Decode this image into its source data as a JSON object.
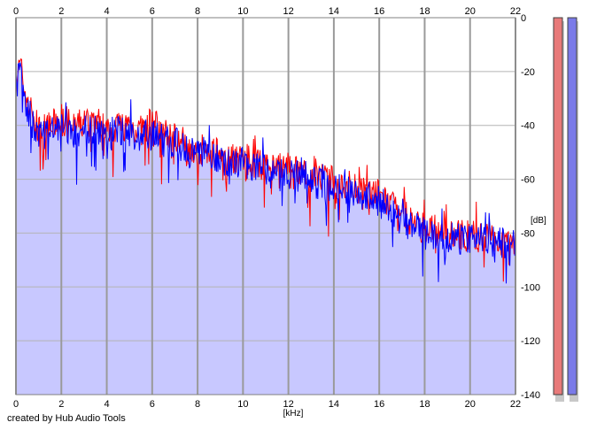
{
  "credit": "created by Hub Audio Tools",
  "chart_data": {
    "type": "line",
    "title": "",
    "xlabel": "[kHz]",
    "ylabel": "[dB]",
    "xlim": [
      0,
      22
    ],
    "ylim": [
      -140,
      0
    ],
    "x_ticks": [
      "0",
      "2",
      "4",
      "6",
      "8",
      "10",
      "12",
      "14",
      "16",
      "18",
      "20",
      "22"
    ],
    "y_ticks": [
      "0",
      "-20",
      "-40",
      "-60",
      "-80",
      "-100",
      "-120",
      "-140"
    ],
    "grid": true,
    "fill_color": "#c8c8ff",
    "series": [
      {
        "color": "#ff0000",
        "x": [
          0,
          0.2,
          0.4,
          0.6,
          0.8,
          1,
          1.5,
          2,
          2.5,
          3,
          3.5,
          4,
          4.5,
          5,
          5.5,
          6,
          6.5,
          7,
          7.5,
          8,
          8.5,
          9,
          9.5,
          10,
          10.5,
          11,
          11.5,
          12,
          12.5,
          13,
          13.5,
          14,
          14.5,
          15,
          15.5,
          16,
          16.5,
          17,
          17.5,
          18,
          18.5,
          19,
          19.5,
          20,
          20.5,
          21,
          21.5,
          22
        ],
        "values": [
          -22,
          -18,
          -28,
          -33,
          -38,
          -42,
          -41,
          -37,
          -41,
          -39,
          -38,
          -41,
          -40,
          -40,
          -42,
          -39,
          -43,
          -44,
          -47,
          -49,
          -49,
          -51,
          -52,
          -52,
          -54,
          -55,
          -56,
          -56,
          -57,
          -59,
          -60,
          -61,
          -62,
          -63,
          -64,
          -66,
          -70,
          -73,
          -76,
          -78,
          -79,
          -80,
          -81,
          -81,
          -81,
          -82,
          -83,
          -82
        ]
      },
      {
        "color": "#0000ff",
        "x": [
          0,
          0.2,
          0.4,
          0.6,
          0.8,
          1,
          1.5,
          2,
          2.5,
          3,
          3.5,
          4,
          4.5,
          5,
          5.5,
          6,
          6.5,
          7,
          7.5,
          8,
          8.5,
          9,
          9.5,
          10,
          10.5,
          11,
          11.5,
          12,
          12.5,
          13,
          13.5,
          14,
          14.5,
          15,
          15.5,
          16,
          16.5,
          17,
          17.5,
          18,
          18.5,
          19,
          19.5,
          20,
          20.5,
          21,
          21.5,
          22
        ],
        "values": [
          -20,
          -16,
          -30,
          -36,
          -42,
          -44,
          -43,
          -40,
          -44,
          -42,
          -41,
          -43,
          -42,
          -43,
          -45,
          -42,
          -46,
          -46,
          -49,
          -50,
          -50,
          -53,
          -53,
          -54,
          -56,
          -57,
          -58,
          -58,
          -59,
          -61,
          -62,
          -63,
          -64,
          -65,
          -66,
          -68,
          -72,
          -75,
          -78,
          -80,
          -80,
          -81,
          -82,
          -82,
          -82,
          -83,
          -84,
          -83
        ]
      }
    ],
    "level_meters": [
      {
        "color": "#e87a7a",
        "value_db": -140
      },
      {
        "color": "#7a7ae8",
        "value_db": -140
      }
    ]
  }
}
